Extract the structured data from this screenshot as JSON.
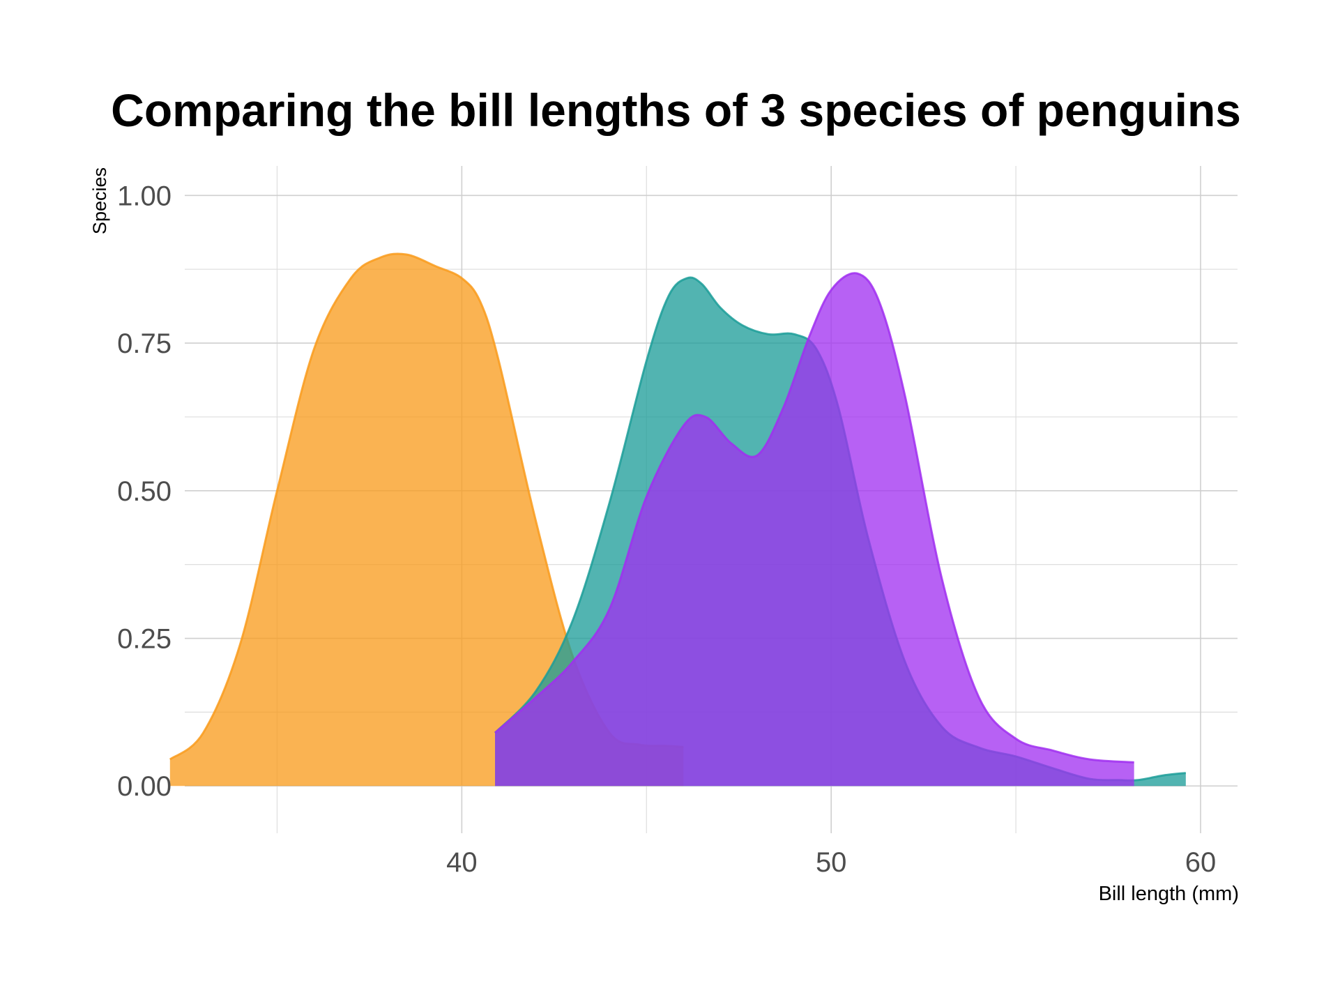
{
  "chart_data": {
    "type": "area",
    "title": "Comparing the bill lengths of 3 species of penguins",
    "xlabel": "Bill length (mm)",
    "ylabel": "Species",
    "xlim": [
      32.5,
      61
    ],
    "ylim": [
      -0.08,
      1.05
    ],
    "x_ticks": [
      40,
      50,
      60
    ],
    "x_tick_labels": [
      "40",
      "50",
      "60"
    ],
    "y_ticks": [
      0,
      0.25,
      0.5,
      0.75,
      1
    ],
    "y_tick_labels": [
      "0.00",
      "0.25",
      "0.50",
      "0.75",
      "1.00"
    ],
    "grid": true,
    "legend": "none",
    "series": [
      {
        "color": "#f99b1c",
        "x": [
          32.1,
          33.0,
          34.0,
          35.0,
          36.0,
          37.0,
          37.8,
          38.5,
          39.3,
          40.0,
          40.5,
          41.0,
          42.0,
          43.0,
          44.0,
          44.8,
          45.5,
          46.0
        ],
        "y": [
          0.045,
          0.09,
          0.24,
          0.5,
          0.74,
          0.86,
          0.895,
          0.9,
          0.88,
          0.86,
          0.82,
          0.72,
          0.45,
          0.22,
          0.09,
          0.07,
          0.068,
          0.066
        ]
      },
      {
        "color": "#1c9d99",
        "x": [
          40.9,
          42.0,
          43.0,
          44.0,
          45.0,
          45.6,
          46.1,
          46.5,
          47.0,
          47.6,
          48.3,
          49.0,
          49.6,
          50.2,
          51.0,
          52.0,
          53.0,
          54.0,
          55.0,
          56.0,
          57.0,
          57.8,
          58.3,
          59.0,
          59.6
        ],
        "y": [
          0.09,
          0.16,
          0.28,
          0.48,
          0.72,
          0.83,
          0.86,
          0.85,
          0.81,
          0.78,
          0.765,
          0.765,
          0.74,
          0.64,
          0.42,
          0.21,
          0.1,
          0.065,
          0.05,
          0.03,
          0.012,
          0.01,
          0.01,
          0.018,
          0.022
        ]
      },
      {
        "color": "#a02ff0",
        "x": [
          40.9,
          42.0,
          43.0,
          44.0,
          45.0,
          46.0,
          46.6,
          47.3,
          48.0,
          48.7,
          49.4,
          50.0,
          50.7,
          51.3,
          52.0,
          53.0,
          54.0,
          55.0,
          56.0,
          57.0,
          58.2
        ],
        "y": [
          0.09,
          0.15,
          0.21,
          0.3,
          0.49,
          0.61,
          0.625,
          0.58,
          0.56,
          0.64,
          0.76,
          0.84,
          0.868,
          0.82,
          0.66,
          0.35,
          0.15,
          0.08,
          0.06,
          0.045,
          0.04
        ]
      }
    ]
  }
}
